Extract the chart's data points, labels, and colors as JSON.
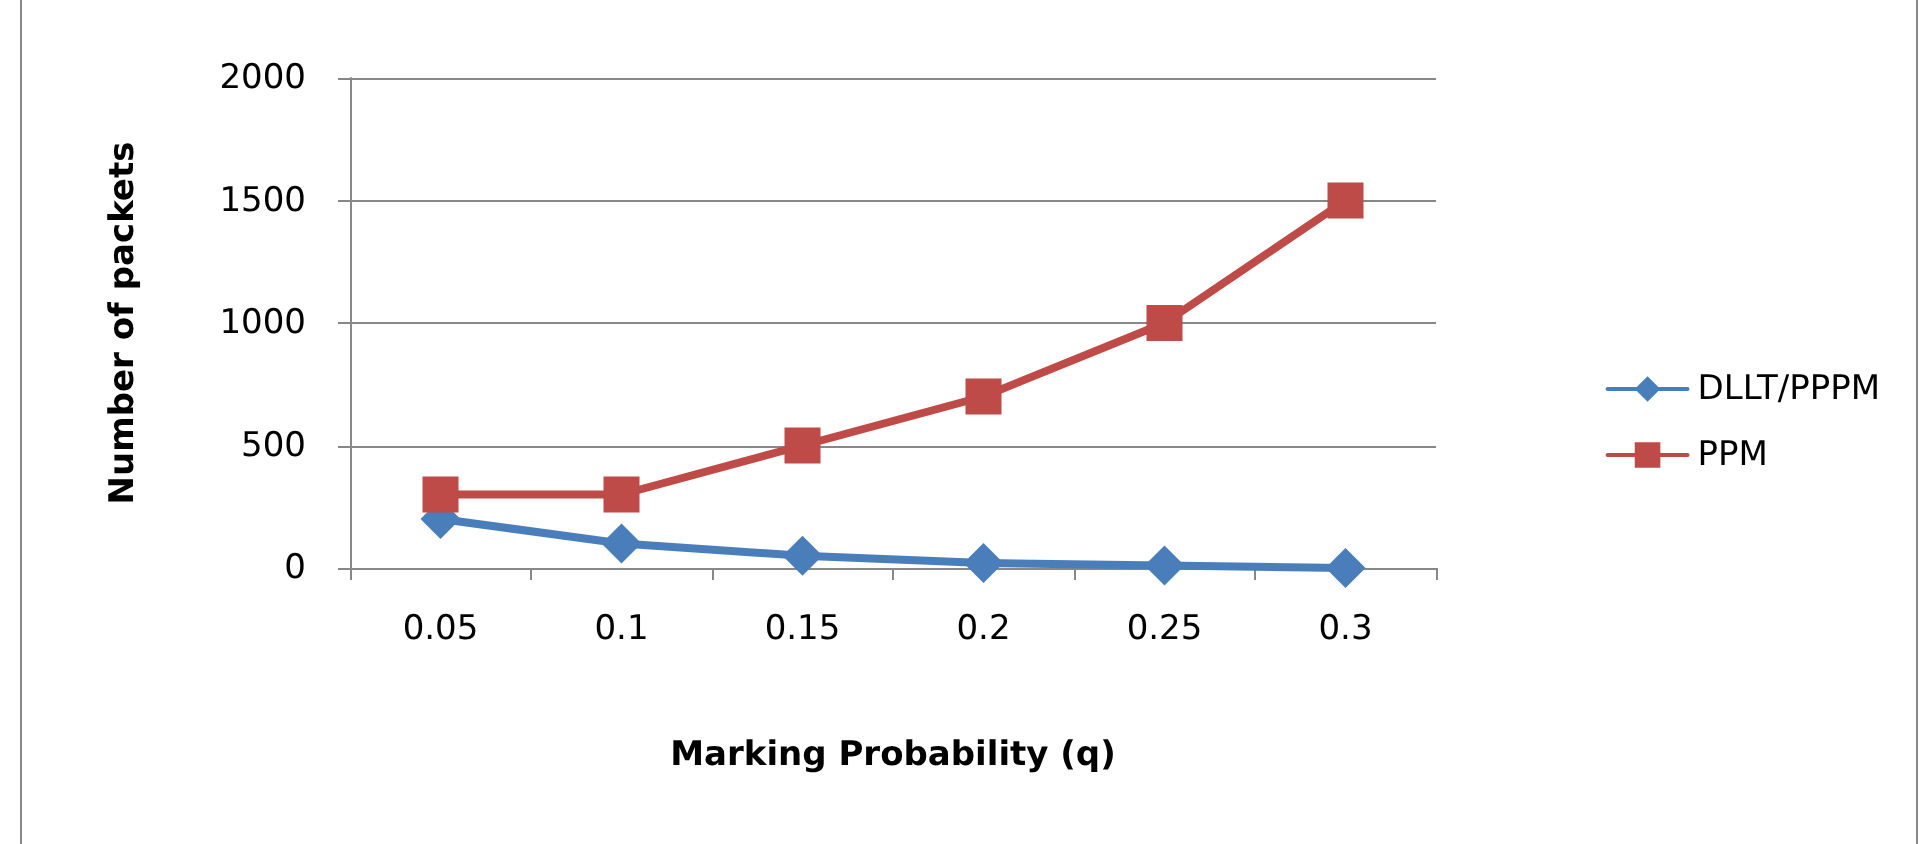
{
  "chart_data": {
    "type": "line",
    "xlabel": "Marking Probability (q)",
    "ylabel": "Number of packets",
    "categories": [
      "0.05",
      "0.1",
      "0.15",
      "0.2",
      "0.25",
      "0.3"
    ],
    "series": [
      {
        "name": "DLLT/PPPM",
        "color": "#4a7ebb",
        "marker": "diamond",
        "values": [
          200,
          100,
          50,
          20,
          10,
          0
        ]
      },
      {
        "name": "PPM",
        "color": "#be4b48",
        "marker": "square",
        "values": [
          300,
          300,
          500,
          700,
          1000,
          1500
        ]
      }
    ],
    "ylim": [
      0,
      2000
    ],
    "yticks": [
      0,
      500,
      1000,
      1500,
      2000
    ],
    "grid": "y",
    "legend": "right",
    "line_style": "solid"
  }
}
